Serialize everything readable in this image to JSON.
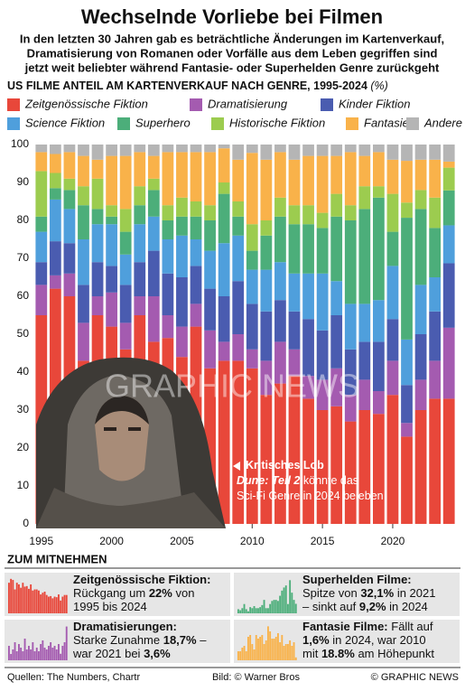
{
  "chart_data": {
    "type": "stacked_bar",
    "title": "Wechselnde Vorliebe bei Filmen",
    "subtitle": [
      "In den letzten 30 Jahren gab es beträchtliche Änderungen im Kartenverkauf,",
      "Dramatisierung von Romanen oder Vorfälle aus dem Leben gegriffen sind",
      "jetzt weit beliebter während Fantasie- oder Superhelden Genre zurückgeht"
    ],
    "chart_title": "US FILME ANTEIL AM KARTENVERKAUF NACH GENRE, 1995-2024",
    "unit": "(%)",
    "x": [
      1995,
      1996,
      1997,
      1998,
      1999,
      2000,
      2001,
      2002,
      2003,
      2004,
      2005,
      2006,
      2007,
      2008,
      2009,
      2010,
      2011,
      2012,
      2013,
      2014,
      2015,
      2016,
      2017,
      2018,
      2019,
      2020,
      2021,
      2022,
      2023,
      2024
    ],
    "xlim": [
      1994.5,
      2024.5
    ],
    "xticks": [
      1995,
      2000,
      2005,
      2010,
      2015,
      2020
    ],
    "ylim": [
      0,
      100
    ],
    "yticks": [
      0,
      10,
      20,
      30,
      40,
      50,
      60,
      70,
      80,
      90,
      100
    ],
    "grid": false,
    "series": [
      {
        "name": "Zeitgenössische Fiktion",
        "color": "#e8473a",
        "values": [
          55,
          62,
          60,
          43,
          55,
          52,
          46,
          55,
          48,
          49,
          44,
          52,
          41,
          43,
          43,
          41,
          34,
          37,
          39,
          33,
          30,
          31,
          27,
          30,
          29,
          34,
          23,
          30,
          33,
          33
        ]
      },
      {
        "name": "Dramatisierung",
        "color": "#a45bb0",
        "values": [
          8,
          3.5,
          6,
          10,
          5,
          9,
          7,
          5,
          12,
          6,
          8,
          6,
          10,
          5,
          7,
          5,
          9,
          11,
          7,
          6,
          8,
          10,
          7,
          8,
          6,
          9,
          3.6,
          8,
          10,
          18.7
        ]
      },
      {
        "name": "Kinder Fiktion",
        "color": "#4a5cb0",
        "values": [
          6,
          9,
          8,
          10,
          9,
          7,
          10,
          9,
          12,
          11,
          13,
          10,
          11,
          12,
          14,
          12,
          13,
          11,
          10,
          15,
          13,
          14,
          12,
          10,
          13,
          11,
          10,
          12,
          13,
          17
        ]
      },
      {
        "name": "Science Fiktion",
        "color": "#4f9fdc",
        "values": [
          8,
          11,
          9,
          12,
          10,
          11,
          8,
          10,
          9,
          9,
          11,
          7,
          10,
          14,
          12,
          9,
          11,
          10,
          10,
          12,
          15,
          9,
          12,
          10,
          11,
          14,
          12,
          13,
          9,
          10
        ]
      },
      {
        "name": "Superhero",
        "color": "#4cae7a",
        "values": [
          4,
          3,
          5,
          9,
          4,
          2,
          6,
          5,
          7,
          5,
          5,
          6,
          8,
          13,
          5,
          5,
          9,
          12,
          13,
          13,
          12,
          17,
          22,
          25,
          27,
          9,
          32.1,
          20,
          13,
          9.2
        ]
      },
      {
        "name": "Historische Fiktion",
        "color": "#9ccc4f",
        "values": [
          12,
          4,
          3,
          5,
          8,
          3,
          6,
          5,
          3,
          4,
          5,
          4,
          4,
          3,
          4,
          7,
          4,
          5,
          5,
          5,
          4,
          6,
          4,
          6,
          3,
          10,
          4,
          5,
          8,
          6
        ]
      },
      {
        "name": "Fantasie",
        "color": "#f9b24a",
        "values": [
          5,
          5,
          7,
          8,
          5,
          13,
          14,
          9,
          6,
          14,
          12,
          13,
          14,
          9,
          11,
          18.8,
          16,
          12,
          12,
          13,
          15,
          10,
          14,
          8,
          9,
          9,
          11,
          8,
          10,
          1.6
        ]
      },
      {
        "name": "Andere",
        "color": "#b5b5b5",
        "values": [
          2,
          2.5,
          2,
          3,
          4,
          3,
          3,
          2,
          3,
          2,
          2,
          2,
          2,
          1,
          4,
          2.2,
          4,
          2,
          4,
          3,
          3,
          3,
          2,
          3,
          2,
          4,
          4.3,
          4,
          4,
          4.5
        ]
      }
    ],
    "annotation": [
      [
        {
          "text": "Kritisches Lob"
        }
      ],
      [
        {
          "text": "Dune: Teil 2",
          "bold": true
        },
        {
          "text": " könnte das"
        }
      ],
      [
        {
          "text": "Sci-Fi Genre in 2024 beleben"
        }
      ]
    ],
    "watermark": "GRAPHIC NEWS"
  },
  "takeaways": {
    "heading": "ZUM MITNEHMEN",
    "boxes": [
      {
        "lines": [
          [
            {
              "text": "Zeitgenössische Fiktion:",
              "bold": true
            }
          ],
          [
            {
              "text": "Rückgang um "
            },
            {
              "text": "22%",
              "bold": true
            },
            {
              "text": " von"
            }
          ],
          [
            {
              "text": "1995 bis 2024"
            }
          ]
        ]
      },
      {
        "lines": [
          [
            {
              "text": "Superhelden Filme:",
              "bold": true
            }
          ],
          [
            {
              "text": "Spitze von "
            },
            {
              "text": "32,1%",
              "bold": true
            },
            {
              "text": " in 2021"
            }
          ],
          [
            {
              "text": "– sinkt auf "
            },
            {
              "text": "9,2%",
              "bold": true
            },
            {
              "text": " in 2024"
            }
          ]
        ]
      },
      {
        "lines": [
          [
            {
              "text": "Dramatisierungen:",
              "bold": true
            }
          ],
          [
            {
              "text": "Starke Zunahme "
            },
            {
              "text": "18,7%",
              "bold": true
            },
            {
              "text": " –"
            }
          ],
          [
            {
              "text": "war 2021 bei "
            },
            {
              "text": "3,6%",
              "bold": true
            }
          ]
        ]
      },
      {
        "lines": [
          [
            {
              "text": "Fantasie Filme:",
              "bold": true
            },
            {
              "text": " Fällt auf"
            }
          ],
          [
            {
              "text": "1,6%",
              "bold": true
            },
            {
              "text": " in 2024, war 2010"
            }
          ],
          [
            {
              "text": "mit "
            },
            {
              "text": "18.8%",
              "bold": true
            },
            {
              "text": " am Höhepunkt"
            }
          ]
        ]
      }
    ]
  },
  "footer": {
    "sources": "Quellen: The Numbers, Chartr",
    "image": "Bild: © Warner Bros",
    "credit": "© GRAPHIC NEWS"
  }
}
